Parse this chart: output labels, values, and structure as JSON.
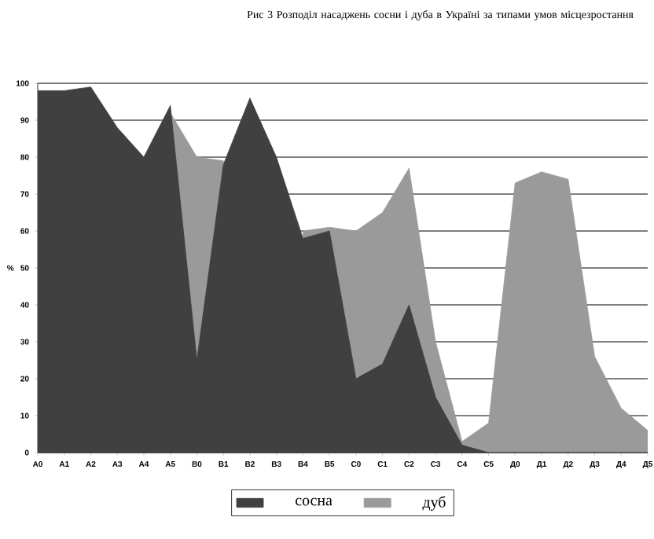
{
  "chart_data": {
    "type": "area",
    "title": "Рис 3 Розподіл насаджень сосни і дуба в Україні за типами умов місцезростання",
    "ylabel": "%",
    "categories": [
      "A0",
      "A1",
      "A2",
      "A3",
      "A4",
      "A5",
      "B0",
      "B1",
      "B2",
      "B3",
      "B4",
      "B5",
      "C0",
      "C1",
      "C2",
      "C3",
      "C4",
      "C5",
      "Д0",
      "Д1",
      "Д2",
      "Д3",
      "Д4",
      "Д5"
    ],
    "series": [
      {
        "name": "сосна",
        "color": "#404040",
        "values": [
          98,
          98,
          99,
          88,
          80,
          94,
          25,
          78,
          96,
          80,
          58,
          60,
          20,
          24,
          40,
          15,
          2,
          0,
          0,
          0,
          0,
          0,
          0,
          0
        ]
      },
      {
        "name": "дуб",
        "color": "#9a9a9a",
        "values": [
          null,
          null,
          null,
          null,
          null,
          92,
          80,
          79,
          null,
          null,
          60,
          61,
          60,
          65,
          77,
          30,
          3,
          8,
          73,
          76,
          74,
          26,
          12,
          6
        ]
      }
    ],
    "ylim": [
      0,
      100
    ],
    "yticks": [
      0,
      10,
      20,
      30,
      40,
      50,
      60,
      70,
      80,
      90,
      100
    ],
    "grid": "y",
    "legend": "bottom"
  }
}
